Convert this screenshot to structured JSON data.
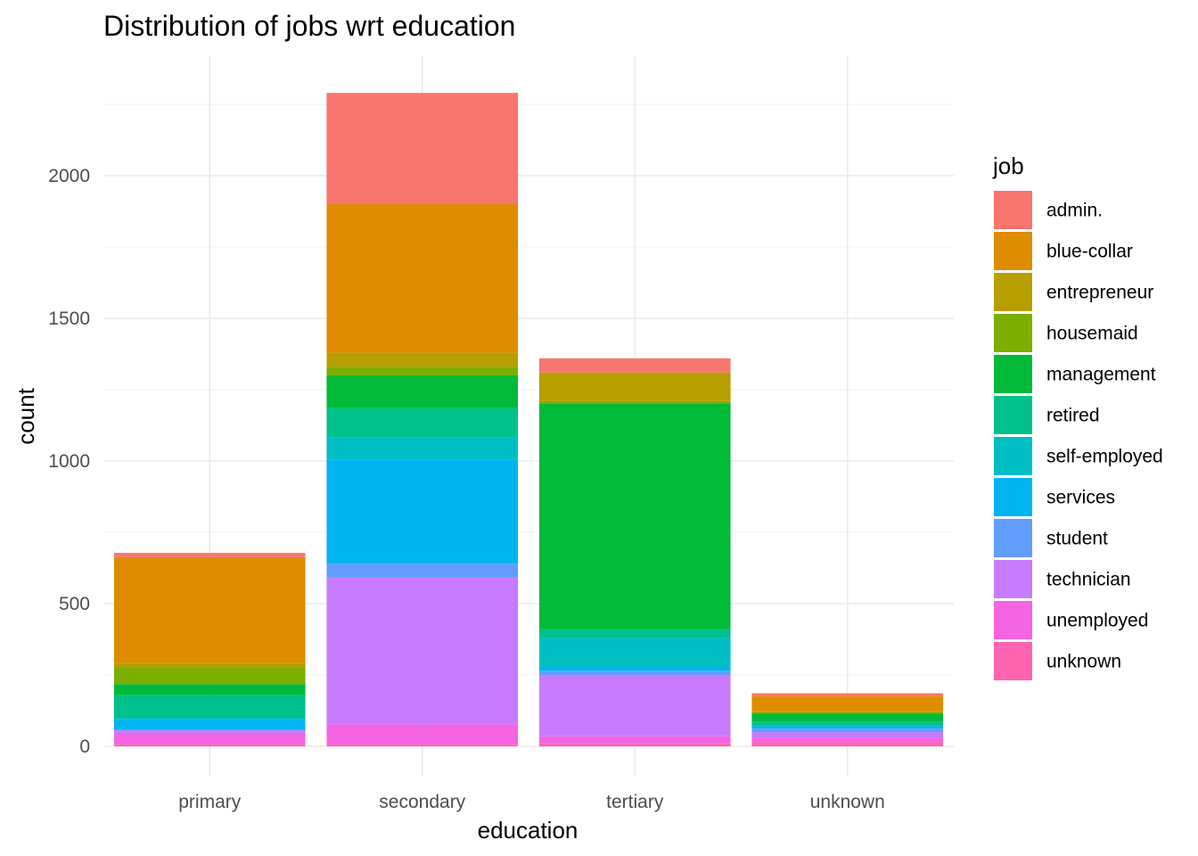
{
  "chart_data": {
    "type": "bar",
    "stacked": true,
    "title": "Distribution of jobs wrt education",
    "xlabel": "education",
    "ylabel": "count",
    "categories": [
      "primary",
      "secondary",
      "tertiary",
      "unknown"
    ],
    "ylim": [
      0,
      2310
    ],
    "yticks": [
      "0",
      "500",
      "1000",
      "1500",
      "2000"
    ],
    "grid": true,
    "legend_title": "job",
    "legend_position": "right",
    "series": [
      {
        "name": "admin.",
        "color": "#F8766D",
        "values": [
          15,
          390,
          50,
          10
        ]
      },
      {
        "name": "blue-collar",
        "color": "#DE8C00",
        "values": [
          370,
          520,
          0,
          52
        ]
      },
      {
        "name": "entrepreneur",
        "color": "#B79F00",
        "values": [
          15,
          50,
          100,
          5
        ]
      },
      {
        "name": "housemaid",
        "color": "#7CAE00",
        "values": [
          60,
          30,
          10,
          5
        ]
      },
      {
        "name": "management",
        "color": "#00BA38",
        "values": [
          38,
          115,
          790,
          27
        ]
      },
      {
        "name": "retired",
        "color": "#00C08B",
        "values": [
          80,
          102,
          30,
          12
        ]
      },
      {
        "name": "self-employed",
        "color": "#00BFC4",
        "values": [
          5,
          78,
          105,
          5
        ]
      },
      {
        "name": "services",
        "color": "#00B4F0",
        "values": [
          38,
          365,
          10,
          8
        ]
      },
      {
        "name": "student",
        "color": "#619CFF",
        "values": [
          0,
          48,
          15,
          12
        ]
      },
      {
        "name": "technician",
        "color": "#C77CFF",
        "values": [
          10,
          515,
          215,
          20
        ]
      },
      {
        "name": "unemployed",
        "color": "#F564E3",
        "values": [
          40,
          70,
          25,
          15
        ]
      },
      {
        "name": "unknown",
        "color": "#FF64B0",
        "values": [
          7,
          7,
          10,
          15
        ]
      }
    ]
  }
}
